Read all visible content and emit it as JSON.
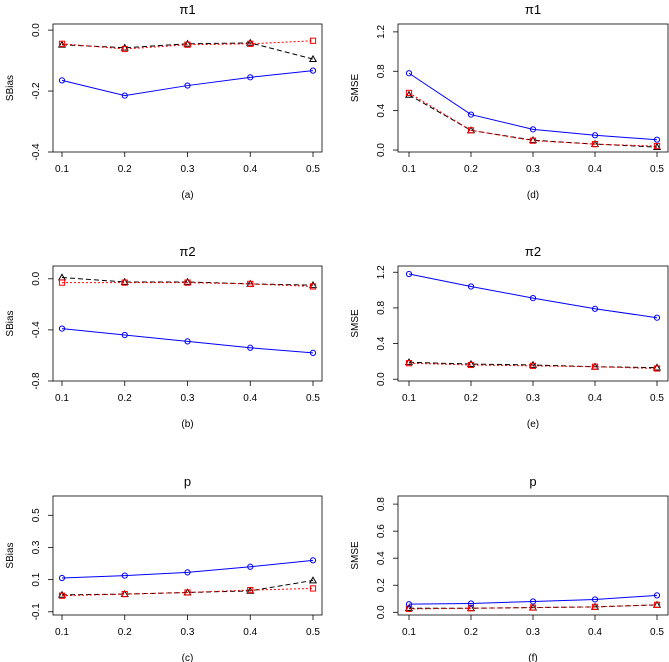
{
  "chart_data": [
    {
      "panel": "(a)",
      "type": "line",
      "title": "π1",
      "ylabel": "SBias",
      "x": [
        0.1,
        0.2,
        0.3,
        0.4,
        0.5
      ],
      "xticks": [
        "0.1",
        "0.2",
        "0.3",
        "0.4",
        "0.5"
      ],
      "ylim": [
        -0.4,
        0.02
      ],
      "yticks": [
        0.0,
        -0.2,
        -0.4
      ],
      "ytick_labels": [
        "0.0",
        "-0.2",
        "-0.4"
      ],
      "series": [
        {
          "values": [
            -0.165,
            -0.215,
            -0.182,
            -0.155,
            -0.133
          ],
          "color": "#0000ff",
          "marker": "circle",
          "dash": "solid"
        },
        {
          "values": [
            -0.045,
            -0.062,
            -0.048,
            -0.045,
            -0.035
          ],
          "color": "#ff0000",
          "marker": "square",
          "dash": "dotted"
        },
        {
          "values": [
            -0.048,
            -0.058,
            -0.045,
            -0.042,
            -0.095
          ],
          "color": "#000000",
          "marker": "triangle",
          "dash": "dashed"
        }
      ]
    },
    {
      "panel": "(d)",
      "type": "line",
      "title": "π1",
      "ylabel": "SMSE",
      "x": [
        0.1,
        0.2,
        0.3,
        0.4,
        0.5
      ],
      "xticks": [
        "0.1",
        "0.2",
        "0.3",
        "0.4",
        "0.5"
      ],
      "ylim": [
        -0.02,
        1.28
      ],
      "yticks": [
        0.0,
        0.4,
        0.8,
        1.2
      ],
      "ytick_labels": [
        "0.0",
        "0.4",
        "0.8",
        "1.2"
      ],
      "series": [
        {
          "values": [
            0.78,
            0.36,
            0.21,
            0.15,
            0.105
          ],
          "color": "#0000ff",
          "marker": "circle",
          "dash": "solid"
        },
        {
          "values": [
            0.58,
            0.2,
            0.095,
            0.06,
            0.04
          ],
          "color": "#ff0000",
          "marker": "square",
          "dash": "dotted"
        },
        {
          "values": [
            0.56,
            0.2,
            0.1,
            0.06,
            0.03
          ],
          "color": "#000000",
          "marker": "triangle",
          "dash": "dashed"
        }
      ]
    },
    {
      "panel": "(b)",
      "type": "line",
      "title": "π2",
      "ylabel": "SBias",
      "x": [
        0.1,
        0.2,
        0.3,
        0.4,
        0.5
      ],
      "xticks": [
        "0.1",
        "0.2",
        "0.3",
        "0.4",
        "0.5"
      ],
      "ylim": [
        -0.8,
        0.1
      ],
      "yticks": [
        0.0,
        -0.4,
        -0.8
      ],
      "ytick_labels": [
        "0.0",
        "-0.4",
        "-0.8"
      ],
      "series": [
        {
          "values": [
            -0.39,
            -0.44,
            -0.49,
            -0.54,
            -0.58
          ],
          "color": "#0000ff",
          "marker": "circle",
          "dash": "solid"
        },
        {
          "values": [
            -0.03,
            -0.03,
            -0.03,
            -0.04,
            -0.06
          ],
          "color": "#ff0000",
          "marker": "square",
          "dash": "dotted"
        },
        {
          "values": [
            0.01,
            -0.025,
            -0.025,
            -0.04,
            -0.05
          ],
          "color": "#000000",
          "marker": "triangle",
          "dash": "dashed"
        }
      ]
    },
    {
      "panel": "(e)",
      "type": "line",
      "title": "π2",
      "ylabel": "SMSE",
      "x": [
        0.1,
        0.2,
        0.3,
        0.4,
        0.5
      ],
      "xticks": [
        "0.1",
        "0.2",
        "0.3",
        "0.4",
        "0.5"
      ],
      "ylim": [
        -0.02,
        1.27
      ],
      "yticks": [
        0.0,
        0.4,
        0.8,
        1.2
      ],
      "ytick_labels": [
        "0.0",
        "0.4",
        "0.8",
        "1.2"
      ],
      "series": [
        {
          "values": [
            1.18,
            1.04,
            0.91,
            0.79,
            0.69
          ],
          "color": "#0000ff",
          "marker": "circle",
          "dash": "solid"
        },
        {
          "values": [
            0.18,
            0.16,
            0.15,
            0.14,
            0.12
          ],
          "color": "#ff0000",
          "marker": "square",
          "dash": "dotted"
        },
        {
          "values": [
            0.19,
            0.17,
            0.16,
            0.14,
            0.13
          ],
          "color": "#000000",
          "marker": "triangle",
          "dash": "dashed"
        }
      ]
    },
    {
      "panel": "(c)",
      "type": "line",
      "title": "p",
      "ylabel": "SBias",
      "x": [
        0.1,
        0.2,
        0.3,
        0.4,
        0.5
      ],
      "xticks": [
        "0.1",
        "0.2",
        "0.3",
        "0.4",
        "0.5"
      ],
      "ylim": [
        -0.12,
        0.62
      ],
      "yticks": [
        -0.1,
        0.1,
        0.3,
        0.5
      ],
      "ytick_labels": [
        "-0.1",
        "0.1",
        "0.3",
        "0.5"
      ],
      "series": [
        {
          "values": [
            0.11,
            0.125,
            0.145,
            0.18,
            0.22
          ],
          "color": "#0000ff",
          "marker": "circle",
          "dash": "solid"
        },
        {
          "values": [
            0.0,
            0.01,
            0.02,
            0.035,
            0.045
          ],
          "color": "#ff0000",
          "marker": "square",
          "dash": "dotted"
        },
        {
          "values": [
            0.005,
            0.01,
            0.02,
            0.03,
            0.095
          ],
          "color": "#000000",
          "marker": "triangle",
          "dash": "dashed"
        }
      ]
    },
    {
      "panel": "(f)",
      "type": "line",
      "title": "p",
      "ylabel": "SMSE",
      "x": [
        0.1,
        0.2,
        0.3,
        0.4,
        0.5
      ],
      "xticks": [
        "0.1",
        "0.2",
        "0.3",
        "0.4",
        "0.5"
      ],
      "ylim": [
        -0.02,
        0.86
      ],
      "yticks": [
        0.0,
        0.2,
        0.4,
        0.6,
        0.8
      ],
      "ytick_labels": [
        "0.0",
        "0.2",
        "0.4",
        "0.6",
        "0.8"
      ],
      "series": [
        {
          "values": [
            0.06,
            0.065,
            0.08,
            0.095,
            0.125
          ],
          "color": "#0000ff",
          "marker": "circle",
          "dash": "solid"
        },
        {
          "values": [
            0.025,
            0.03,
            0.035,
            0.04,
            0.055
          ],
          "color": "#ff0000",
          "marker": "square",
          "dash": "dotted"
        },
        {
          "values": [
            0.03,
            0.03,
            0.035,
            0.04,
            0.055
          ],
          "color": "#000000",
          "marker": "triangle",
          "dash": "dashed"
        }
      ]
    }
  ]
}
